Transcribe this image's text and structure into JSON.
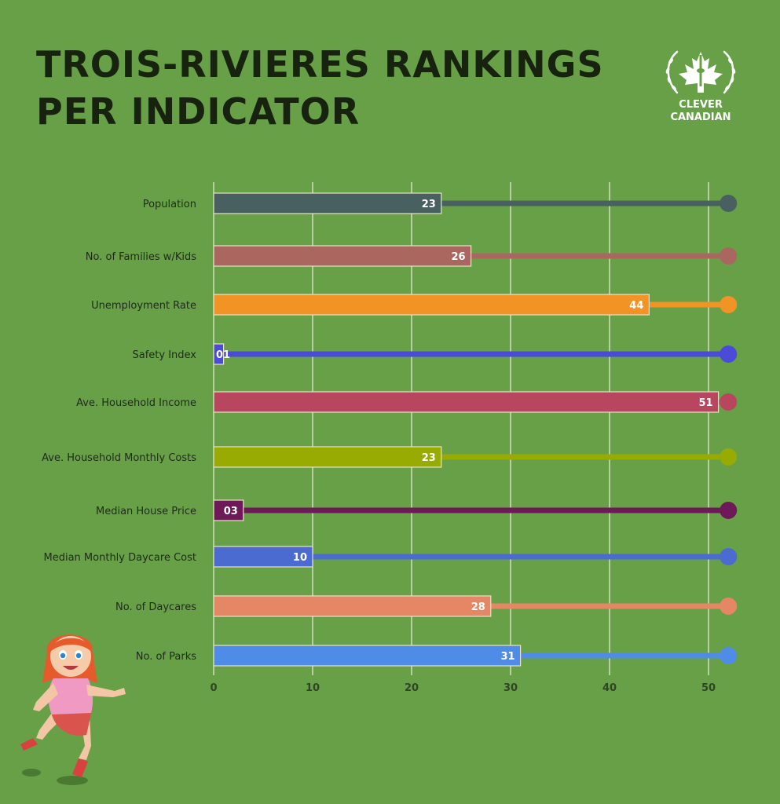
{
  "header": {
    "title_line1": "TROIS-RIVIERES RANKINGS",
    "title_line2": "PER INDICATOR"
  },
  "logo": {
    "line1": "CLEVER",
    "line2": "CANADIAN",
    "icon": "maple-leaf-cn-tower-laurel-icon"
  },
  "illustration": {
    "icon": "running-girl-illustration"
  },
  "chart_data": {
    "type": "bar",
    "orientation": "horizontal",
    "categories": [
      "Population",
      "No. of Families w/Kids",
      "Unemployment Rate",
      "Safety Index",
      "Ave. Household Income",
      "Ave. Household Monthly Costs",
      "Median House Price",
      "Median Monthly Daycare Cost",
      "No. of Daycares",
      "No. of Parks"
    ],
    "values": [
      23,
      26,
      44,
      1,
      51,
      23,
      3,
      10,
      28,
      31
    ],
    "value_labels": [
      "23",
      "26",
      "44",
      "01",
      "51",
      "23",
      "03",
      "10",
      "28",
      "31"
    ],
    "colors": [
      "#48605f",
      "#a96760",
      "#f29325",
      "#4a4bd9",
      "#b9465f",
      "#97ab02",
      "#6e1a59",
      "#4c6bd0",
      "#e58765",
      "#4f8ce8"
    ],
    "track_end": 52,
    "xticks": [
      0,
      10,
      20,
      30,
      40,
      50
    ],
    "xlim": [
      0,
      52
    ],
    "grid": true,
    "legend": "none"
  }
}
